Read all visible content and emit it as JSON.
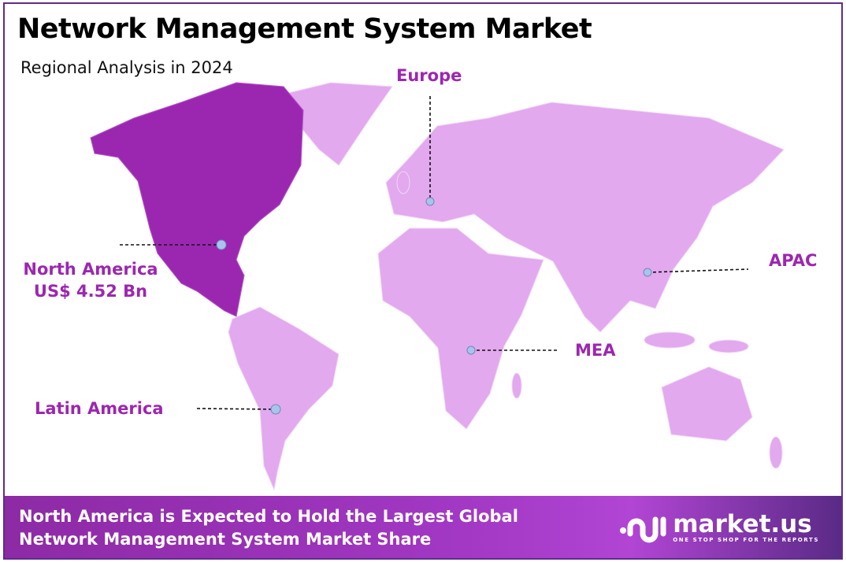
{
  "header": {
    "title": "Network Management System Market",
    "subtitle": "Regional Analysis in 2024"
  },
  "regions": [
    {
      "name": "North America",
      "value": "US$ 4.52 Bn",
      "highlight": true
    },
    {
      "name": "Europe"
    },
    {
      "name": "APAC"
    },
    {
      "name": "MEA"
    },
    {
      "name": "Latin America"
    }
  ],
  "colors": {
    "highlight": "#9b27b0",
    "land": "#e2a9ee",
    "label": "#9c27b0",
    "marker": "#a9c4ec",
    "border": "#5e2d8c"
  },
  "footer": {
    "line1": "North America is Expected to Hold the Largest Global",
    "line2": "Network Management System Market Share"
  },
  "logo": {
    "name": "market.us",
    "tagline": "ONE STOP SHOP FOR THE REPORTS"
  }
}
